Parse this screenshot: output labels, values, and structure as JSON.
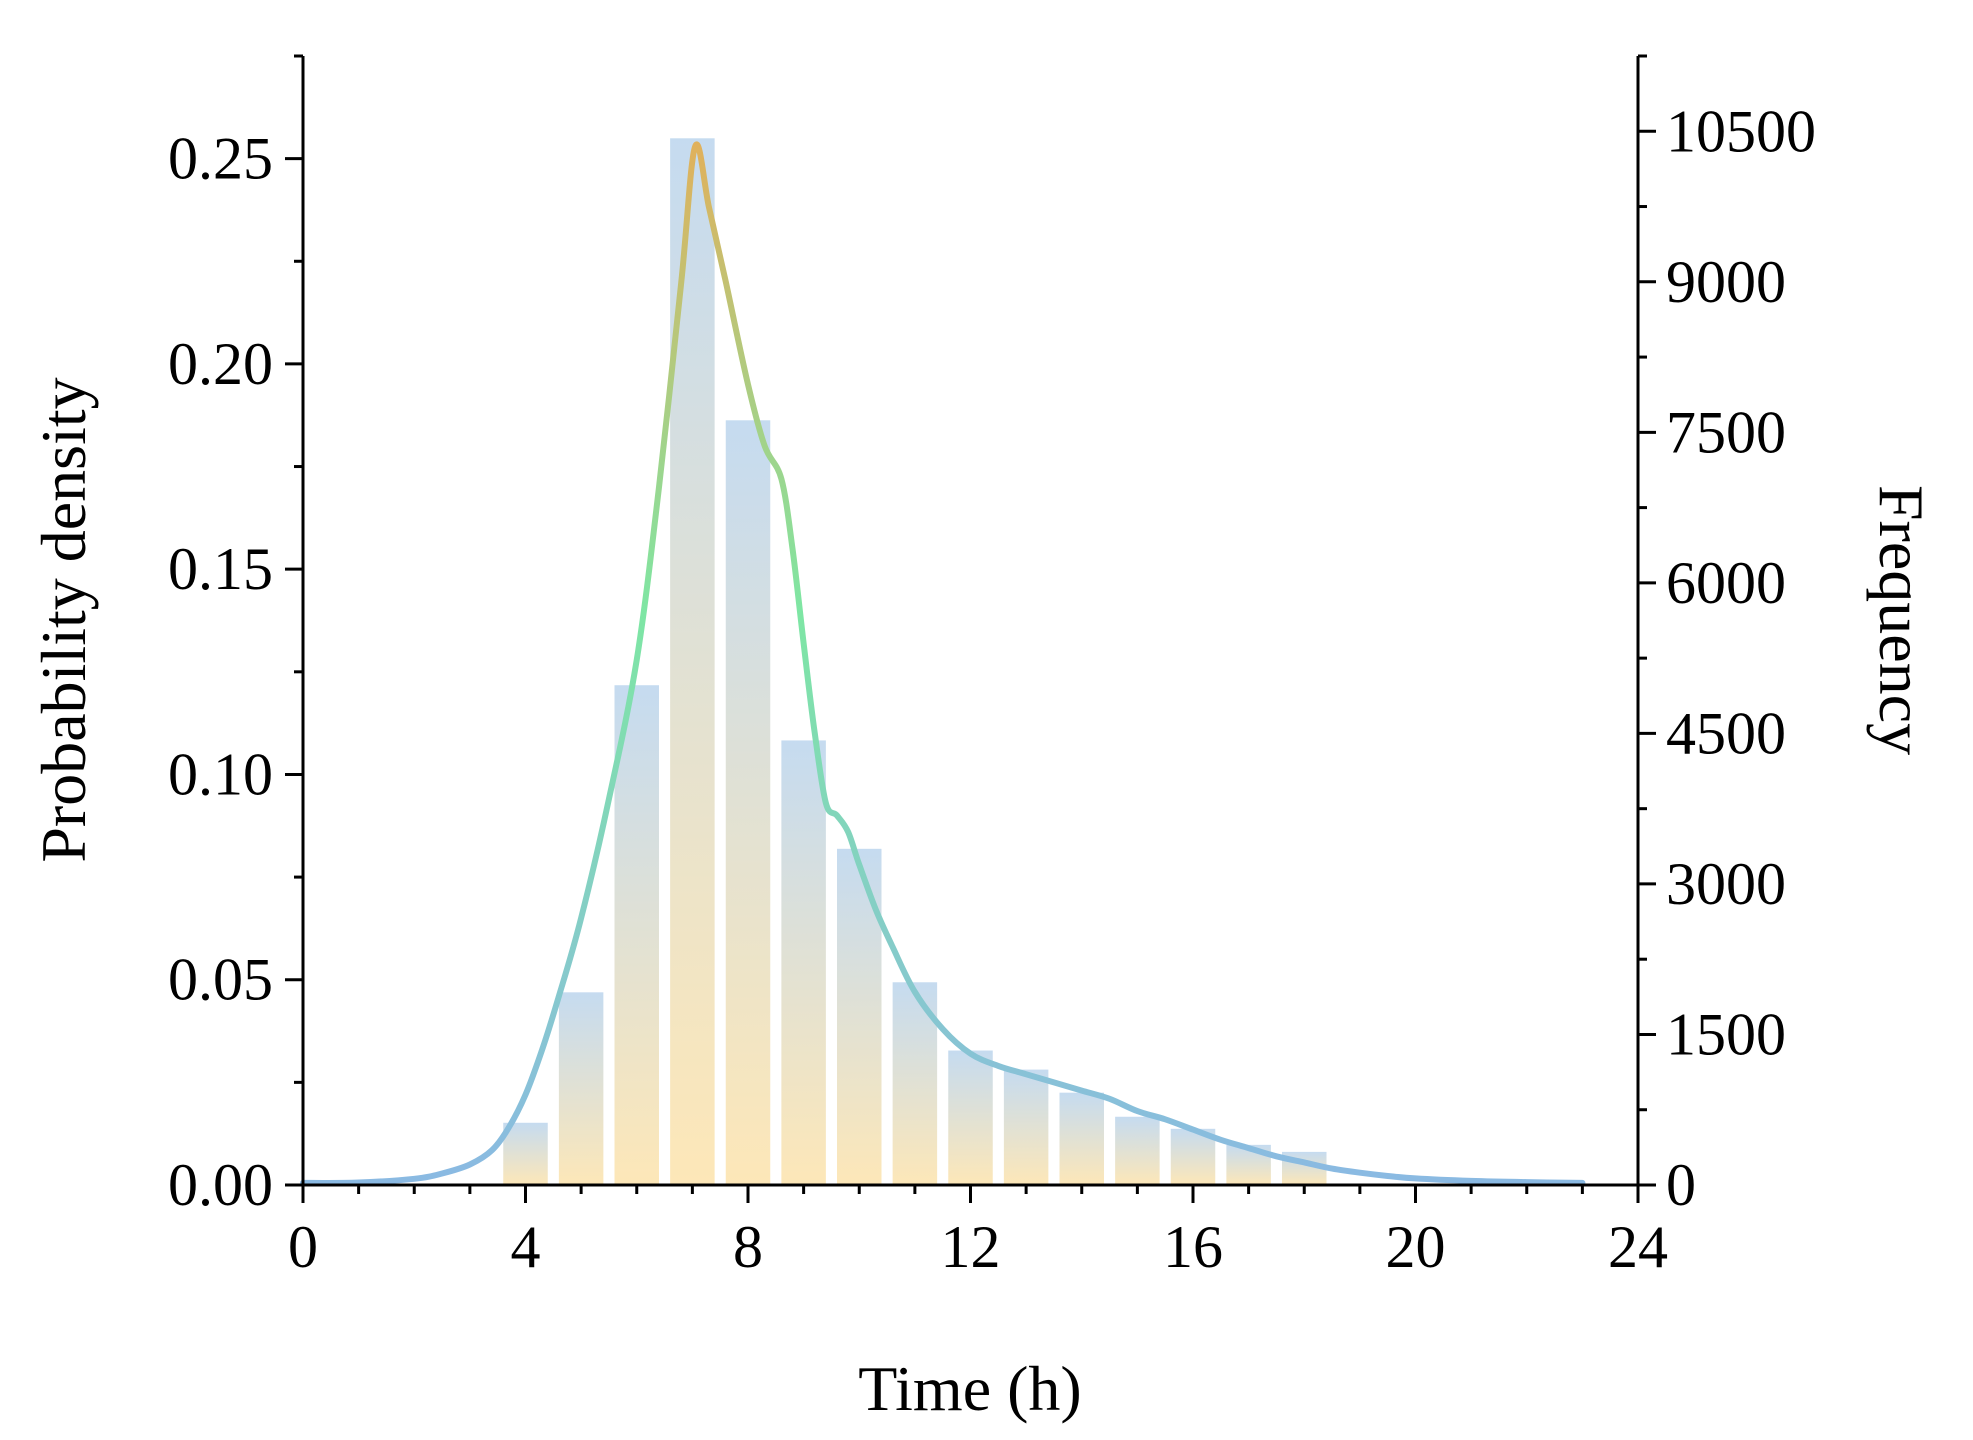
{
  "chart_data": {
    "type": "bar",
    "xlabel": "Time (h)",
    "ylabel_left": "Probability density",
    "ylabel_right": "Frequency",
    "xlim": [
      0,
      24
    ],
    "ylim_left": [
      0,
      0.275
    ],
    "ylim_right": [
      0,
      11250
    ],
    "x_ticks": [
      "0",
      "4",
      "8",
      "12",
      "16",
      "20",
      "24"
    ],
    "y_left_ticks": [
      "0.00",
      "0.05",
      "0.10",
      "0.15",
      "0.20",
      "0.25"
    ],
    "y_right_ticks": [
      "0",
      "1500",
      "3000",
      "4500",
      "6000",
      "7500",
      "9000",
      "10500"
    ],
    "grid": false,
    "series": [
      {
        "kind": "histogram",
        "axis": "right",
        "bin_width": 1,
        "bin_centers": [
          4,
          5,
          6,
          7,
          8,
          9,
          10,
          11,
          12,
          13,
          14,
          15,
          16,
          17,
          18
        ],
        "values": [
          620,
          1920,
          4980,
          10430,
          7620,
          4430,
          3350,
          2020,
          1340,
          1150,
          920,
          680,
          560,
          400,
          330
        ],
        "gradient": [
          "#fde6b4",
          "#c2d9ef"
        ]
      },
      {
        "kind": "density",
        "axis": "left",
        "x": [
          0,
          1,
          2,
          2.5,
          3,
          3.4,
          3.7,
          4,
          4.3,
          4.6,
          5,
          5.5,
          6,
          6.4,
          6.8,
          7.05,
          7.3,
          7.6,
          8,
          8.3,
          8.6,
          8.8,
          9.0,
          9.2,
          9.4,
          9.6,
          9.8,
          10,
          10.3,
          10.6,
          11,
          11.5,
          12,
          12.5,
          13,
          13.5,
          14,
          14.5,
          15,
          15.5,
          16,
          16.5,
          17,
          17.5,
          18,
          18.5,
          19,
          19.5,
          20,
          21,
          22,
          23
        ],
        "y": [
          0.0005,
          0.0006,
          0.0015,
          0.0028,
          0.005,
          0.0085,
          0.014,
          0.022,
          0.033,
          0.046,
          0.065,
          0.094,
          0.128,
          0.17,
          0.22,
          0.253,
          0.238,
          0.22,
          0.195,
          0.18,
          0.172,
          0.155,
          0.132,
          0.11,
          0.093,
          0.09,
          0.086,
          0.078,
          0.067,
          0.058,
          0.047,
          0.038,
          0.032,
          0.029,
          0.027,
          0.025,
          0.023,
          0.021,
          0.018,
          0.016,
          0.0135,
          0.011,
          0.009,
          0.007,
          0.0055,
          0.004,
          0.003,
          0.0022,
          0.0016,
          0.001,
          0.0007,
          0.0005
        ],
        "gradient": [
          "#8ab9e3",
          "#7ee6a4",
          "#e0b15c"
        ]
      }
    ]
  }
}
